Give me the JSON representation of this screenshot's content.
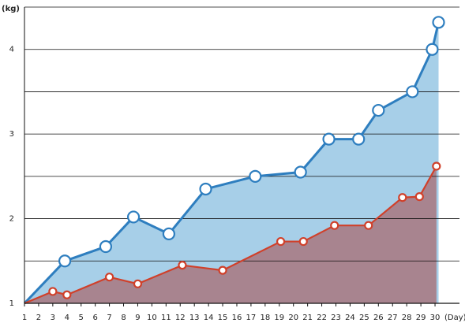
{
  "chart_data": {
    "type": "area",
    "y_label": "(kg)",
    "x_label": "(Day)",
    "xlim": [
      1,
      30.5
    ],
    "ylim": [
      1,
      4.5
    ],
    "xticks": [
      1,
      2,
      3,
      4,
      5,
      6,
      7,
      8,
      9,
      10,
      11,
      12,
      13,
      14,
      15,
      16,
      17,
      18,
      19,
      20,
      21,
      22,
      23,
      24,
      25,
      26,
      27,
      28,
      29,
      30
    ],
    "yticks": [
      1,
      2,
      3,
      4
    ],
    "minor_yticks": [
      1.5,
      2.5,
      3.5,
      4.5
    ],
    "grid": true,
    "series": [
      {
        "color": "#2e7ebf",
        "fill": "#a7cfe8",
        "x": [
          1,
          3.85,
          6.74,
          8.7,
          11.2,
          13.8,
          17.3,
          20.5,
          22.5,
          24.6,
          26.0,
          28.4,
          29.8,
          30.25
        ],
        "values": [
          1,
          1.5,
          1.67,
          2.02,
          1.82,
          2.35,
          2.5,
          2.55,
          2.94,
          2.94,
          3.28,
          3.5,
          4.0,
          4.32
        ]
      },
      {
        "color": "#d0402a",
        "fill": "#a8848f",
        "x": [
          1,
          3.0,
          4.0,
          7.0,
          9.0,
          12.15,
          15.0,
          19.1,
          20.7,
          22.9,
          25.3,
          27.7,
          28.9,
          30.1
        ],
        "values": [
          1,
          1.14,
          1.1,
          1.31,
          1.23,
          1.45,
          1.39,
          1.73,
          1.73,
          1.92,
          1.92,
          2.25,
          2.26,
          2.62
        ]
      }
    ]
  }
}
